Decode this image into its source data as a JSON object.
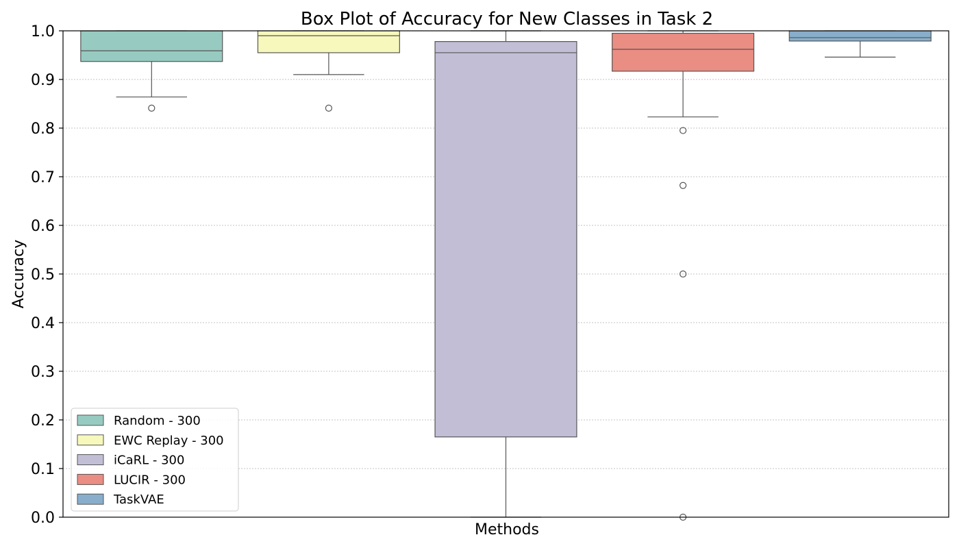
{
  "chart_data": {
    "type": "box",
    "title": "Box Plot of Accuracy for New Classes in Task 2",
    "xlabel": "Methods",
    "ylabel": "Accuracy",
    "ylim": [
      0,
      1
    ],
    "yticks": [
      "0.0",
      "0.1",
      "0.2",
      "0.3",
      "0.4",
      "0.5",
      "0.6",
      "0.7",
      "0.8",
      "0.9",
      "1.0"
    ],
    "grid": "y dotted",
    "legend_position": "lower-left",
    "series": [
      {
        "name": "Random - 300",
        "color": "#97CBC1",
        "whislo": 0.864,
        "q1": 0.937,
        "median": 0.959,
        "q3": 1.0,
        "whishi": 1.0,
        "fliers": [
          0.841
        ]
      },
      {
        "name": "EWC Replay - 300",
        "color": "#F6F8BC",
        "whislo": 0.91,
        "q1": 0.955,
        "median": 0.99,
        "q3": 1.0,
        "whishi": 1.0,
        "fliers": [
          0.841
        ]
      },
      {
        "name": "iCaRL - 300",
        "color": "#C1BED6",
        "whislo": 0.0,
        "q1": 0.165,
        "median": 0.955,
        "q3": 0.978,
        "whishi": 1.0,
        "fliers": []
      },
      {
        "name": "LUCIR - 300",
        "color": "#EA8D82",
        "whislo": 0.823,
        "q1": 0.917,
        "median": 0.962,
        "q3": 0.995,
        "whishi": 1.0,
        "fliers": [
          0.795,
          0.682,
          0.5,
          0.0
        ]
      },
      {
        "name": "TaskVAE",
        "color": "#88AECB",
        "whislo": 0.946,
        "q1": 0.979,
        "median": 0.986,
        "q3": 1.0,
        "whishi": 1.0,
        "fliers": []
      }
    ]
  }
}
